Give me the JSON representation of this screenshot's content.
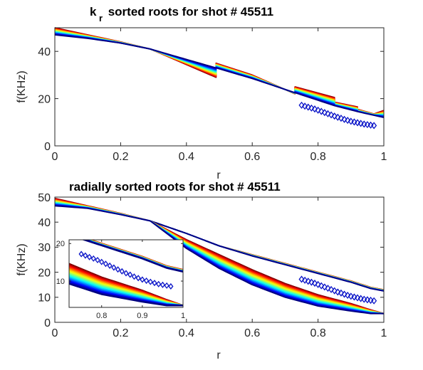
{
  "colors": {
    "marker": "#0a14c8",
    "background": "#ffffff",
    "jet_top": "#0018ff",
    "jet_bottom": "#b00000"
  },
  "chart_data": [
    {
      "type": "line",
      "title_main": "k",
      "title_sub": "r",
      "title_rest": " sorted roots for shot # 45511",
      "xlabel": "r",
      "ylabel": "f(KHz)",
      "xlim": [
        0,
        1
      ],
      "ylim": [
        0,
        50
      ],
      "xticks": [
        "0",
        "0.2",
        "0.4",
        "0.6",
        "0.8",
        "1"
      ],
      "xtick_values": [
        0,
        0.2,
        0.4,
        0.6,
        0.8,
        1
      ],
      "yticks": [
        "0",
        "20",
        "40"
      ],
      "ytick_values": [
        0,
        20,
        40
      ],
      "grid": false,
      "band": {
        "color_scale": "jet",
        "upper_x": [
          0,
          0.1,
          0.2,
          0.29,
          0.49,
          0.49,
          0.6,
          0.73,
          0.73,
          0.85,
          0.85,
          0.92,
          0.92,
          0.97,
          1
        ],
        "upper_y": [
          50,
          47,
          44,
          41,
          29,
          35,
          30,
          22,
          25,
          20.5,
          18.5,
          16.5,
          15.5,
          13.5,
          15
        ],
        "lower_x": [
          0,
          0.1,
          0.2,
          0.29,
          0.49,
          0.6,
          0.73,
          0.85,
          0.92,
          1
        ],
        "lower_y": [
          47,
          45.5,
          43.5,
          41,
          33,
          28.5,
          22.5,
          17,
          14.5,
          12
        ]
      },
      "scatter": {
        "name": "measured",
        "marker": "diamond",
        "x": [
          0.75,
          0.76,
          0.77,
          0.78,
          0.79,
          0.8,
          0.81,
          0.82,
          0.83,
          0.84,
          0.85,
          0.86,
          0.87,
          0.88,
          0.89,
          0.9,
          0.91,
          0.92,
          0.93,
          0.94,
          0.95,
          0.96,
          0.97
        ],
        "y": [
          17.2,
          16.8,
          16.4,
          16,
          15.6,
          15.1,
          14.6,
          14.1,
          13.6,
          13.1,
          12.6,
          12.1,
          11.7,
          11.2,
          10.8,
          10.4,
          10.1,
          9.8,
          9.5,
          9.2,
          9,
          8.8,
          8.6
        ]
      }
    },
    {
      "type": "line",
      "title_main": "radially sorted roots for shot # 45511",
      "xlabel": "r",
      "ylabel": "f(KHz)",
      "xlim": [
        0,
        1
      ],
      "ylim": [
        0,
        50
      ],
      "xticks": [
        "0",
        "0.2",
        "0.4",
        "0.6",
        "0.8",
        "1"
      ],
      "xtick_values": [
        0,
        0.2,
        0.4,
        0.6,
        0.8,
        1
      ],
      "yticks": [
        "0",
        "10",
        "20",
        "30",
        "40",
        "50"
      ],
      "ytick_values": [
        0,
        10,
        20,
        30,
        40,
        50
      ],
      "grid": false,
      "band_upper": {
        "color_scale": "jet",
        "upper_x": [
          0,
          0.1,
          0.2,
          0.29,
          0.4,
          0.5,
          0.6,
          0.7,
          0.8,
          0.9,
          0.96,
          1
        ],
        "upper_y": [
          49.5,
          46.5,
          43.5,
          40.5,
          35.5,
          30.5,
          27,
          23.5,
          20,
          16.5,
          14,
          13
        ],
        "lower_x": [
          0,
          0.1,
          0.2,
          0.29,
          0.4,
          0.5,
          0.6,
          0.7,
          0.8,
          0.9,
          0.96,
          1
        ],
        "lower_y": [
          46.5,
          45.5,
          43,
          40.5,
          35.5,
          30.5,
          26.5,
          23,
          19.5,
          16,
          13.5,
          12.5
        ]
      },
      "band_lower": {
        "color_scale": "jet",
        "upper_x": [
          0.29,
          0.4,
          0.5,
          0.6,
          0.7,
          0.8,
          0.9,
          0.96,
          1
        ],
        "upper_y": [
          40.5,
          33,
          27,
          21,
          15.5,
          11,
          7.5,
          5,
          3.5
        ],
        "lower_x": [
          0.29,
          0.4,
          0.5,
          0.6,
          0.7,
          0.8,
          0.9,
          0.96,
          1
        ],
        "lower_y": [
          40.5,
          29.5,
          21.5,
          15,
          10,
          6.5,
          4.5,
          3.5,
          3.5
        ]
      },
      "scatter": {
        "name": "measured",
        "marker": "diamond",
        "x": [
          0.75,
          0.76,
          0.77,
          0.78,
          0.79,
          0.8,
          0.81,
          0.82,
          0.83,
          0.84,
          0.85,
          0.86,
          0.87,
          0.88,
          0.89,
          0.9,
          0.91,
          0.92,
          0.93,
          0.94,
          0.95,
          0.96,
          0.97
        ],
        "y": [
          17.2,
          16.8,
          16.4,
          16,
          15.6,
          15.1,
          14.6,
          14.1,
          13.6,
          13.1,
          12.6,
          12.1,
          11.7,
          11.2,
          10.8,
          10.4,
          10.1,
          9.8,
          9.5,
          9.2,
          9,
          8.8,
          8.6
        ]
      },
      "inset": {
        "xlim": [
          0.72,
          1
        ],
        "ylim": [
          3,
          21
        ],
        "xticks": [
          "0.8",
          "0.9",
          "1"
        ],
        "xtick_values": [
          0.8,
          0.9,
          1
        ],
        "yticks": [
          "10",
          "20"
        ],
        "ytick_values": [
          10,
          20
        ]
      }
    }
  ]
}
